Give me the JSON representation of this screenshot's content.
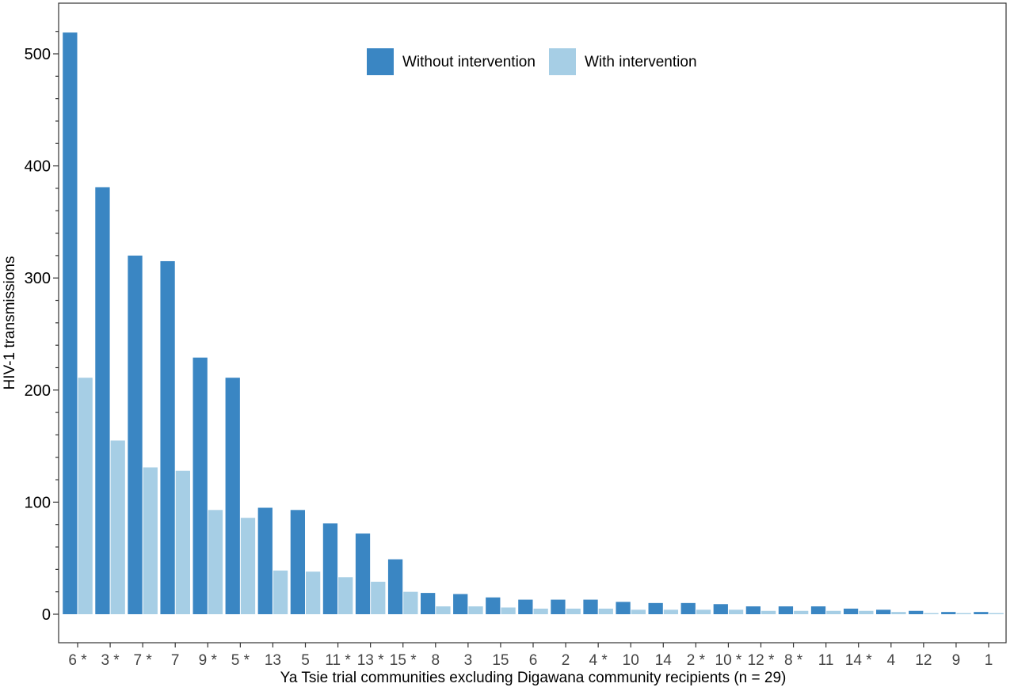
{
  "chart_data": {
    "type": "bar",
    "title": "",
    "xlabel": "Ya Tsie trial communities excluding Digawana community recipients (n = 29)",
    "ylabel": "HIV-1 transmissions",
    "ylim": [
      0,
      520
    ],
    "yticks": [
      0,
      100,
      200,
      300,
      400,
      500
    ],
    "grid": false,
    "legend_position": "top-center",
    "categories": [
      "6 *",
      "3 *",
      "7 *",
      "7",
      "9 *",
      "5 *",
      "13",
      "5",
      "11 *",
      "13 *",
      "15 *",
      "8",
      "3",
      "15",
      "6",
      "2",
      "4 *",
      "10",
      "14",
      "2 *",
      "10 *",
      "12 *",
      "8 *",
      "11",
      "14 *",
      "4",
      "12",
      "9",
      "1"
    ],
    "series": [
      {
        "name": "Without intervention",
        "color": "#3A86C3",
        "values": [
          519,
          381,
          320,
          315,
          229,
          211,
          95,
          93,
          81,
          72,
          49,
          19,
          18,
          15,
          13,
          13,
          13,
          11,
          10,
          10,
          9,
          7,
          7,
          7,
          5,
          4,
          3,
          2,
          2
        ]
      },
      {
        "name": "With intervention",
        "color": "#A6CEE5",
        "values": [
          211,
          155,
          131,
          128,
          93,
          86,
          39,
          38,
          33,
          29,
          20,
          7,
          7,
          6,
          5,
          5,
          5,
          4,
          4,
          4,
          4,
          3,
          3,
          3,
          3,
          2,
          1,
          1,
          1
        ]
      }
    ]
  }
}
